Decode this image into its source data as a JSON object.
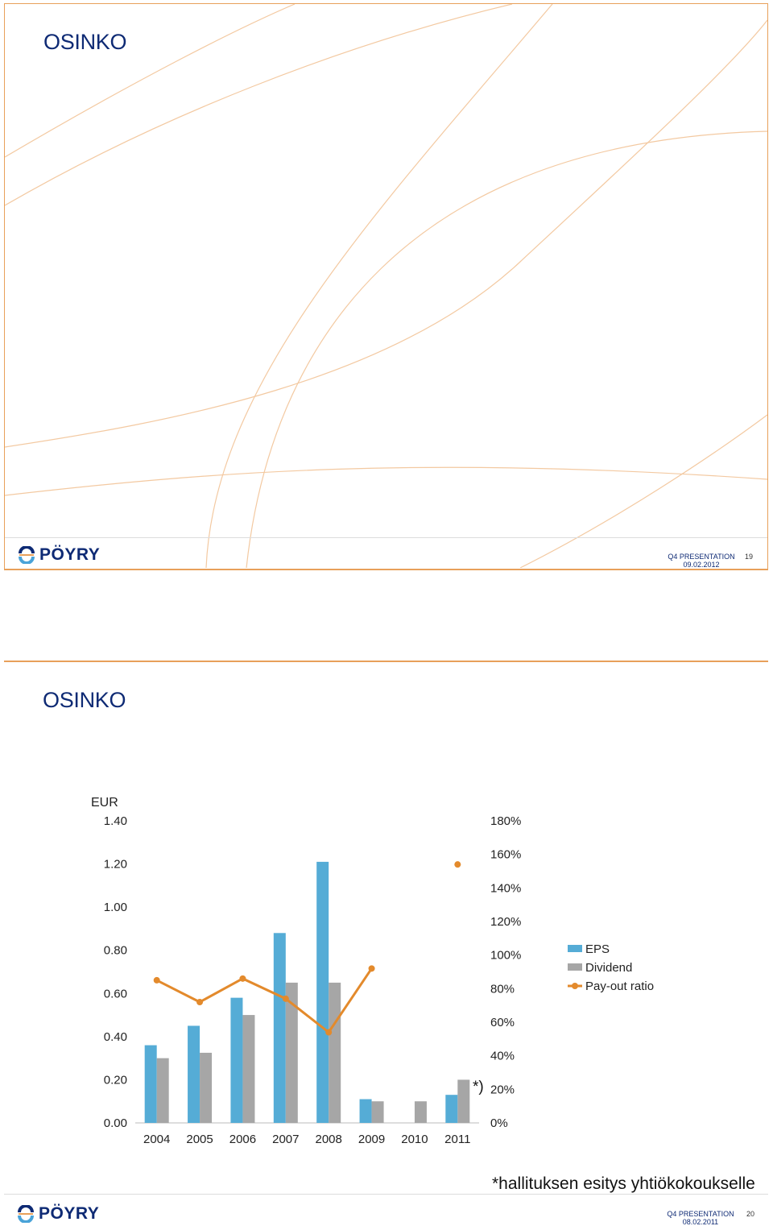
{
  "slide1": {
    "title": "OSINKO",
    "logo_text": "PÖYRY",
    "footer_label": "Q4 PRESENTATION",
    "footer_date": "09.02.2012",
    "page_number": "19"
  },
  "slide2": {
    "title": "OSINKO",
    "logo_text": "PÖYRY",
    "footer_label": "Q4 PRESENTATION",
    "footer_date": "08.02.2011",
    "page_number": "20",
    "footnote_marker": "*)",
    "footnote_text": "*hallituksen esitys yhtiökokoukselle"
  },
  "colors": {
    "eps": "#55acd6",
    "dividend": "#a6a6a6",
    "payout": "#e38a2c",
    "title": "#0e2a74",
    "accent": "#e8a05a"
  },
  "chart_data": {
    "type": "bar",
    "unit_label": "EUR",
    "categories": [
      "2004",
      "2005",
      "2006",
      "2007",
      "2008",
      "2009",
      "2010",
      "2011"
    ],
    "y_left_ticks": [
      "1.40",
      "1.20",
      "1.00",
      "0.80",
      "0.60",
      "0.40",
      "0.20",
      "0.00"
    ],
    "y_right_ticks": [
      "180%",
      "160%",
      "140%",
      "120%",
      "100%",
      "80%",
      "60%",
      "40%",
      "20%",
      "0%"
    ],
    "ylim": [
      0,
      1.4
    ],
    "y2lim": [
      0,
      1.8
    ],
    "legend_position": "right",
    "series": [
      {
        "name": "EPS",
        "kind": "bar",
        "axis": "left",
        "values": [
          0.36,
          0.45,
          0.58,
          0.88,
          1.21,
          0.11,
          null,
          0.13
        ]
      },
      {
        "name": "Dividend",
        "kind": "bar",
        "axis": "left",
        "values": [
          0.3,
          0.325,
          0.5,
          0.65,
          0.65,
          0.1,
          0.1,
          0.2
        ]
      },
      {
        "name": "Pay-out ratio",
        "kind": "line",
        "axis": "right",
        "values": [
          0.85,
          0.72,
          0.86,
          0.74,
          0.54,
          0.92,
          null,
          1.54
        ]
      }
    ]
  }
}
